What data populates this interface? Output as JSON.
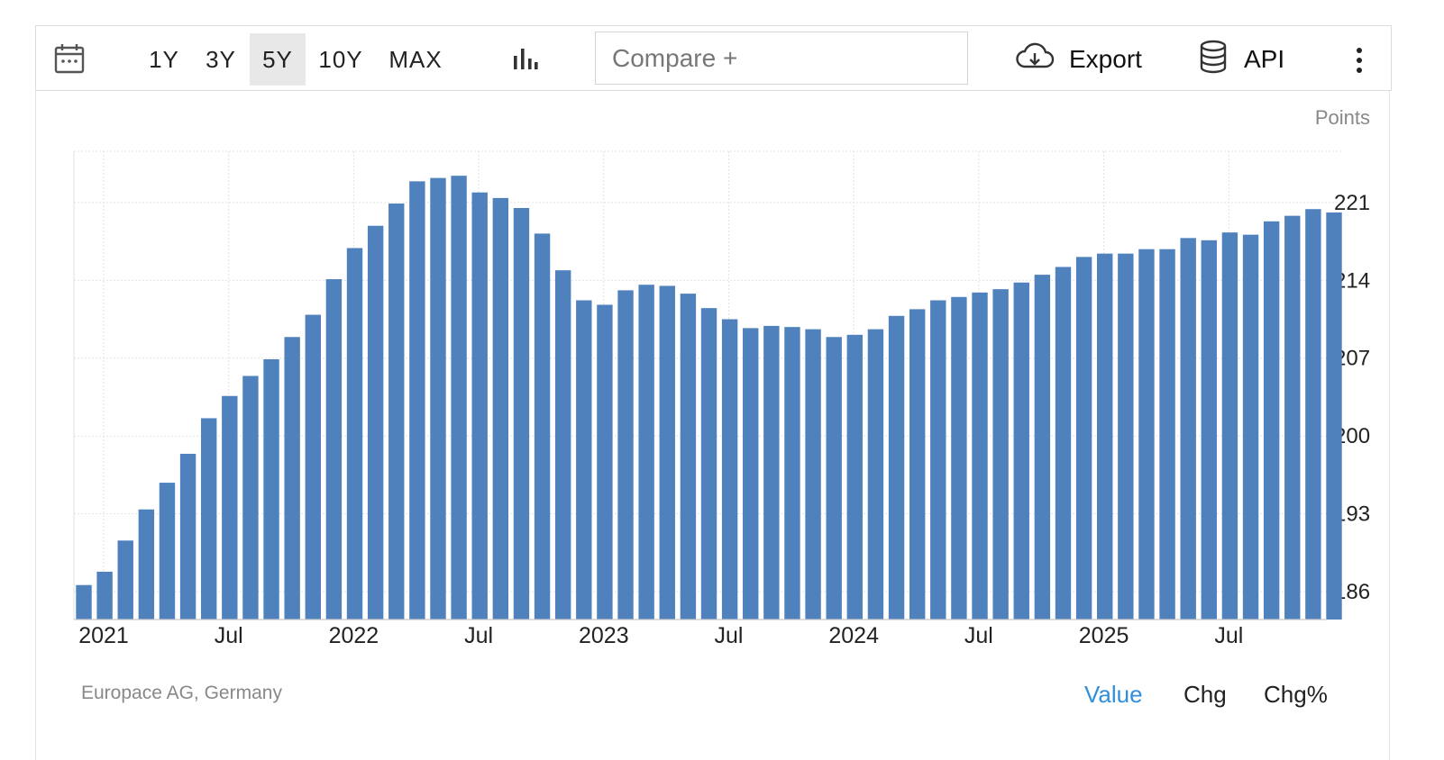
{
  "toolbar": {
    "calendar_icon": "calendar-icon",
    "ranges": [
      {
        "label": "1Y",
        "active": false
      },
      {
        "label": "3Y",
        "active": false
      },
      {
        "label": "5Y",
        "active": true
      },
      {
        "label": "10Y",
        "active": false
      },
      {
        "label": "MAX",
        "active": false
      }
    ],
    "chart_type_icon": "bar-chart-icon",
    "compare_label": "Compare +",
    "export_label": "Export",
    "export_icon": "cloud-download-icon",
    "api_label": "API",
    "api_icon": "database-icon",
    "more_icon": "vertical-dots-icon"
  },
  "colors": {
    "bar": "#4f81bd",
    "grid": "#e2e2e2",
    "active_mode": "#2f8fdd",
    "active_range_bg": "#e8e8e8"
  },
  "chart_data": {
    "type": "bar",
    "title": "",
    "xlabel": "",
    "ylabel": "Points",
    "ylim": [
      183.5,
      225.6
    ],
    "y_ticks": [
      186,
      193,
      200,
      207,
      214,
      221
    ],
    "x_ticks": [
      "2021",
      "Jul",
      "2022",
      "Jul",
      "2023",
      "Jul",
      "2024",
      "Jul",
      "2025",
      "Jul"
    ],
    "grid": true,
    "y_axis_side": "right",
    "start": "2021-01",
    "frequency": "monthly",
    "values": [
      186.6,
      187.8,
      190.6,
      193.4,
      195.8,
      198.4,
      201.6,
      203.6,
      205.4,
      206.9,
      208.9,
      210.9,
      214.1,
      216.9,
      218.9,
      220.9,
      222.9,
      223.2,
      223.4,
      221.9,
      221.4,
      220.5,
      218.2,
      214.9,
      212.2,
      211.8,
      213.1,
      213.6,
      213.5,
      212.8,
      211.5,
      210.5,
      209.7,
      209.9,
      209.8,
      209.6,
      208.9,
      209.1,
      209.6,
      210.8,
      211.4,
      212.2,
      212.5,
      212.9,
      213.2,
      213.8,
      214.5,
      215.2,
      216.1,
      216.4,
      216.4,
      216.8,
      216.8,
      217.8,
      217.6,
      218.3,
      218.1,
      219.3,
      219.8,
      220.4,
      220.1
    ],
    "units": "Points"
  },
  "footer": {
    "source": "Europace AG, Germany",
    "modes": [
      {
        "label": "Value",
        "active": true
      },
      {
        "label": "Chg",
        "active": false
      },
      {
        "label": "Chg%",
        "active": false
      }
    ]
  }
}
